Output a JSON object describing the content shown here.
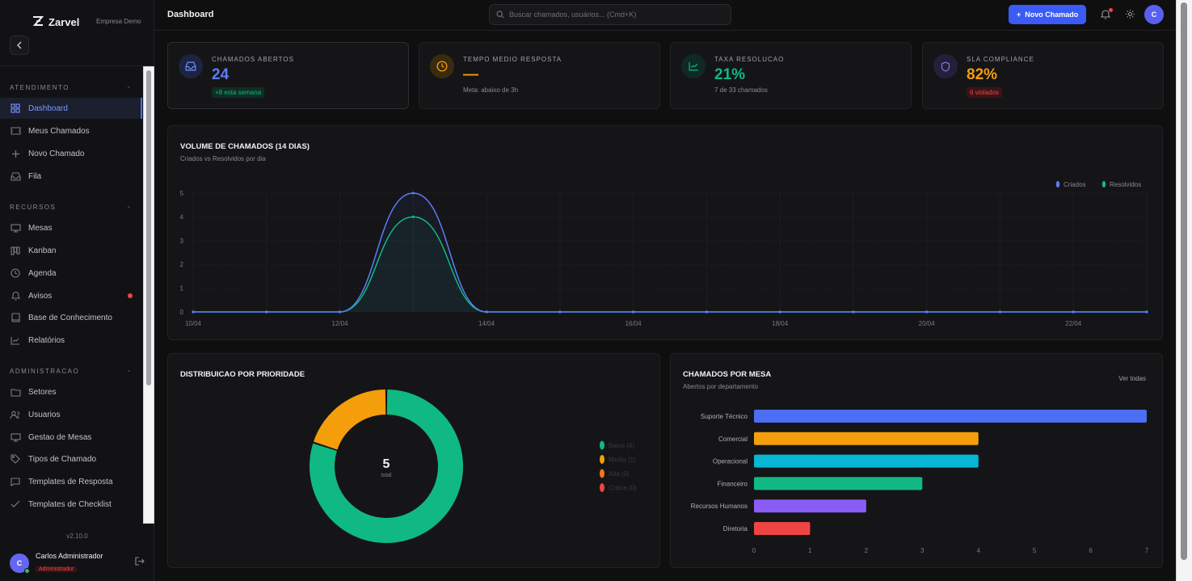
{
  "brand": {
    "name": "Zarvel",
    "workspace": "Empresa Demo"
  },
  "header": {
    "title": "Dashboard",
    "search_placeholder": "Buscar chamados, usuários... (Cmd+K)",
    "new_ticket_label": "Novo Chamado",
    "avatar_initial": "C"
  },
  "sidebar": {
    "sections": [
      {
        "title": "ATENDIMENTO",
        "items": [
          {
            "label": "Dashboard",
            "icon": "dashboard-icon",
            "active": true
          },
          {
            "label": "Meus Chamados",
            "icon": "ticket-icon"
          },
          {
            "label": "Novo Chamado",
            "icon": "plus-icon"
          },
          {
            "label": "Fila",
            "icon": "inbox-icon"
          }
        ]
      },
      {
        "title": "RECURSOS",
        "items": [
          {
            "label": "Mesas",
            "icon": "monitor-icon"
          },
          {
            "label": "Kanban",
            "icon": "kanban-icon"
          },
          {
            "label": "Agenda",
            "icon": "clock-icon"
          },
          {
            "label": "Avisos",
            "icon": "bell-icon",
            "dot": true
          },
          {
            "label": "Base de Conhecimento",
            "icon": "book-icon"
          },
          {
            "label": "Relatórios",
            "icon": "chart-line-icon"
          }
        ]
      },
      {
        "title": "ADMINISTRACAO",
        "items": [
          {
            "label": "Setores",
            "icon": "folder-icon"
          },
          {
            "label": "Usuarios",
            "icon": "users-icon"
          },
          {
            "label": "Gestao de Mesas",
            "icon": "monitor-icon"
          },
          {
            "label": "Tipos de Chamado",
            "icon": "tag-icon"
          },
          {
            "label": "Templates de Resposta",
            "icon": "message-icon"
          },
          {
            "label": "Templates de Checklist",
            "icon": "check-icon"
          }
        ]
      }
    ],
    "version": "v2.10.0",
    "user": {
      "initial": "C",
      "name": "Carlos Administrador",
      "role": "Administrador"
    }
  },
  "stats": [
    {
      "label": "CHAMADOS ABERTOS",
      "value": "24",
      "badge": "+8 esta semana",
      "color": "#5b7cfa",
      "icon": "inbox-icon"
    },
    {
      "label": "TEMPO MEDIO RESPOSTA",
      "value": "—",
      "sub": "Meta: abaixo de 3h",
      "color": "#f59e0b",
      "icon": "clock-icon"
    },
    {
      "label": "TAXA RESOLUCAO",
      "value": "21%",
      "sub": "7 de 33 chamados",
      "color": "#10b981",
      "icon": "trend-icon"
    },
    {
      "label": "SLA COMPLIANCE",
      "value": "82%",
      "badge": "6 violados",
      "color": "#f59e0b",
      "icon": "shield-icon"
    }
  ],
  "volume": {
    "title": "VOLUME DE CHAMADOS (14 DIAS)",
    "subtitle": "Criados vs Resolvidos por dia"
  },
  "priority": {
    "title": "DISTRIBUICAO POR PRIORIDADE",
    "total": "5",
    "total_label": "total"
  },
  "desks": {
    "title": "CHAMADOS POR MESA",
    "subtitle": "Abertos por departamento",
    "see_all": "Ver todas"
  },
  "chart_data": [
    {
      "type": "area",
      "title": "VOLUME DE CHAMADOS (14 DIAS)",
      "subtitle": "Criados vs Resolvidos por dia",
      "x": [
        "10/04",
        "11/04",
        "12/04",
        "13/04",
        "14/04",
        "15/04",
        "16/04",
        "17/04",
        "18/04",
        "19/04",
        "20/04",
        "21/04",
        "22/04",
        "23/04"
      ],
      "x_ticks": [
        "10/04",
        "12/04",
        "14/04",
        "16/04",
        "18/04",
        "20/04",
        "22/04"
      ],
      "series": [
        {
          "name": "Criados",
          "color": "#5b7cfa",
          "values": [
            0,
            0,
            0,
            5,
            0,
            0,
            0,
            0,
            0,
            0,
            0,
            0,
            0,
            0
          ]
        },
        {
          "name": "Resolvidos",
          "color": "#10b981",
          "values": [
            0,
            0,
            0,
            4,
            0,
            0,
            0,
            0,
            0,
            0,
            0,
            0,
            0,
            0
          ]
        }
      ],
      "ylim": [
        0,
        5
      ],
      "y_ticks": [
        0,
        1,
        2,
        3,
        4,
        5
      ],
      "grid": true,
      "legend": "top-right"
    },
    {
      "type": "pie",
      "title": "DISTRIBUICAO POR PRIORIDADE",
      "categories": [
        "Baixa",
        "Media",
        "Alta",
        "Critica"
      ],
      "values": [
        4,
        1,
        0,
        0
      ],
      "legend_labels": [
        "Baixa (4)",
        "Media (1)",
        "Alta (0)",
        "Critica (0)"
      ],
      "colors": [
        "#10b981",
        "#f59e0b",
        "#f97316",
        "#ef4444"
      ],
      "center_value": "5",
      "center_label": "total",
      "legend": "right"
    },
    {
      "type": "bar",
      "orientation": "horizontal",
      "title": "CHAMADOS POR MESA",
      "subtitle": "Abertos por departamento",
      "categories": [
        "Suporte Técnico",
        "Comercial",
        "Operacional",
        "Financeiro",
        "Recursos Humanos",
        "Diretoria"
      ],
      "values": [
        7,
        4,
        4,
        3,
        2,
        1
      ],
      "colors": [
        "#4b6ef5",
        "#f59e0b",
        "#06b6d4",
        "#10b981",
        "#8b5cf6",
        "#ef4444"
      ],
      "x_ticks": [
        0,
        1,
        2,
        3,
        4,
        5,
        6,
        7
      ],
      "xlim": [
        0,
        7
      ]
    }
  ]
}
